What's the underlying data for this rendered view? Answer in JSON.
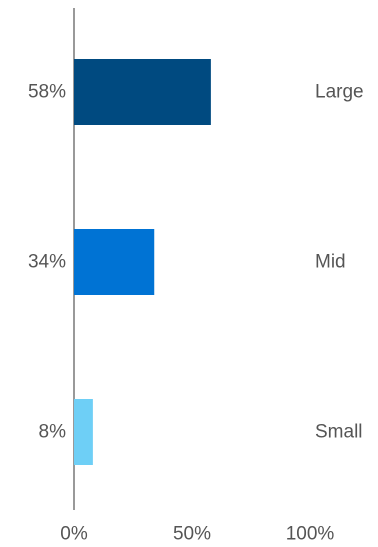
{
  "chart_data": {
    "type": "bar",
    "orientation": "horizontal",
    "categories": [
      "Large",
      "Mid",
      "Small"
    ],
    "values": [
      58,
      34,
      8
    ],
    "value_labels": [
      "58%",
      "34%",
      "8%"
    ],
    "colors": [
      "#004a80",
      "#0073d4",
      "#6ecff6"
    ],
    "xlim": [
      0,
      100
    ],
    "xticks": [
      0,
      50,
      100
    ],
    "xtick_labels": [
      "0%",
      "50%",
      "100%"
    ],
    "title": "",
    "xlabel": "",
    "ylabel": "",
    "grid": false,
    "legend": "none"
  }
}
